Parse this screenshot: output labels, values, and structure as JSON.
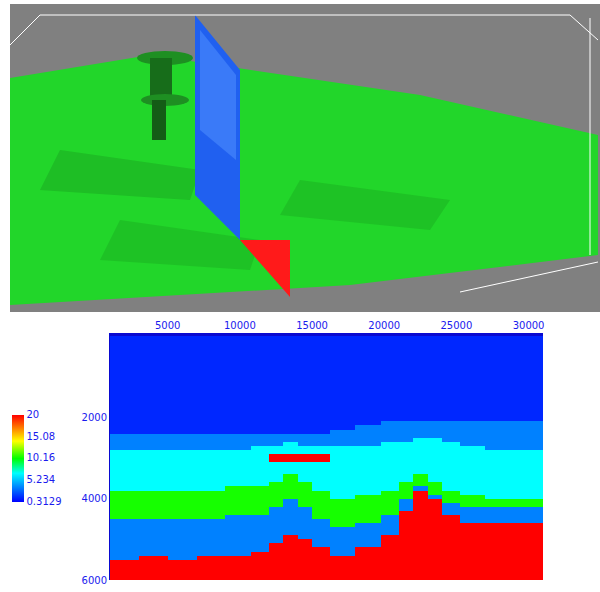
{
  "chart_data": {
    "type": "heatmap",
    "x": [
      2000,
      4000,
      6000,
      8000,
      10000,
      11500,
      12500,
      13500,
      14500,
      15500,
      17000,
      19000,
      20500,
      21500,
      22500,
      23500,
      24500,
      26000,
      28000,
      30000
    ],
    "y": [
      50,
      150,
      250,
      350,
      450,
      550,
      650,
      750,
      850,
      950,
      1050,
      1150,
      1250,
      1350,
      1450,
      1550,
      1650,
      1750,
      1850,
      1950,
      2050,
      2150,
      2250,
      2350,
      2450,
      2550,
      2650,
      2750,
      2850,
      2950,
      3050,
      3150,
      3250,
      3350,
      3450,
      3550,
      3650,
      3750,
      3850,
      3950,
      4050,
      4150,
      4250,
      4350,
      4450,
      4550,
      4650,
      4750,
      4850,
      4950,
      5050,
      5150,
      5250,
      5350,
      5450,
      5550,
      5650,
      5750,
      5850,
      5950
    ],
    "layers": [
      {
        "value": 1.3,
        "top": [
          0,
          0,
          0,
          0,
          0,
          0,
          0,
          0,
          0,
          0,
          0,
          0,
          0,
          0,
          0,
          0,
          0,
          0,
          0,
          0
        ]
      },
      {
        "value": 3.6,
        "top": [
          2380,
          2380,
          2380,
          2380,
          2380,
          2380,
          2380,
          2380,
          2380,
          2380,
          2350,
          2250,
          2150,
          2100,
          2100,
          2100,
          2100,
          2120,
          2150,
          2150
        ]
      },
      {
        "value": 6.8,
        "top": [
          2800,
          2800,
          2800,
          2800,
          2780,
          2750,
          2700,
          2650,
          2700,
          2750,
          2750,
          2700,
          2650,
          2600,
          2550,
          2550,
          2650,
          2750,
          2800,
          2800
        ]
      },
      {
        "value": 10.5,
        "top": [
          3780,
          3780,
          3780,
          3760,
          3740,
          3700,
          3570,
          3390,
          3620,
          3850,
          3970,
          3920,
          3800,
          3650,
          3450,
          3650,
          3850,
          3950,
          3970,
          3970
        ]
      },
      {
        "value": 3.6,
        "top": [
          4480,
          4480,
          4480,
          4470,
          4450,
          4400,
          4200,
          3980,
          4200,
          4550,
          4670,
          4650,
          4450,
          4000,
          3750,
          3900,
          4150,
          4200,
          4200,
          4200
        ]
      },
      {
        "value": 20,
        "top": [
          5500,
          5450,
          5550,
          5400,
          5450,
          5300,
          5150,
          4900,
          5020,
          5250,
          5370,
          5250,
          4900,
          4320,
          3850,
          3970,
          4440,
          4620,
          4620,
          4620
        ]
      }
    ],
    "lenses": [
      {
        "value": 20,
        "x": [
          12400,
          15700
        ],
        "depth": [
          2950,
          3120
        ]
      }
    ],
    "xlim": [
      1000,
      31000
    ],
    "xticks": [
      5000,
      10000,
      15000,
      20000,
      25000,
      30000
    ],
    "ylim": [
      0,
      6000
    ],
    "yticks": [
      2000,
      4000,
      6000
    ],
    "zlim": [
      0.3129,
      20
    ],
    "zticks": [
      0.3129,
      5.234,
      10.16,
      15.08,
      20
    ],
    "grid": false
  }
}
